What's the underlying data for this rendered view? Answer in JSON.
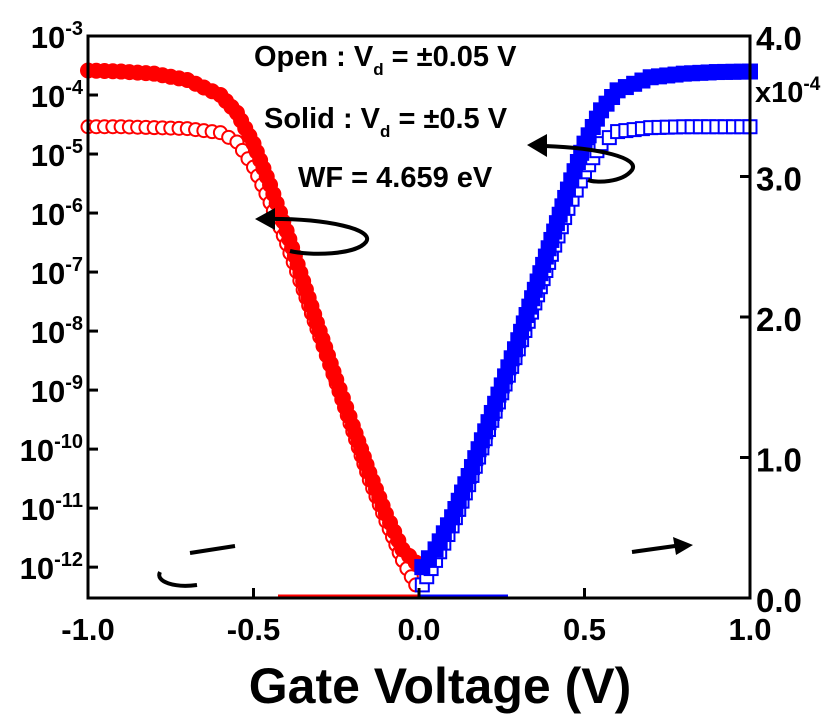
{
  "chart_data": {
    "type": "scatter",
    "xlabel": "Gate Voltage (V)",
    "x_ticks": [
      "-1.0",
      "-0.5",
      "0.0",
      "0.5",
      "1.0"
    ],
    "xlim": [
      -1.0,
      1.0
    ],
    "left_axis": {
      "scale": "log",
      "ylim": [
        3e-13,
        0.001
      ],
      "tick_exponents": [
        "-3",
        "-4",
        "-5",
        "-6",
        "-7",
        "-8",
        "-9",
        "-10",
        "-11",
        "-12"
      ]
    },
    "right_axis": {
      "scale": "linear",
      "ylim": [
        0,
        0.0004
      ],
      "ticks": [
        "0.0",
        "1.0",
        "2.0",
        "3.0",
        "4.0"
      ],
      "multiplier_label": "x10",
      "multiplier_exponent": "-4"
    },
    "annotations": {
      "open_prefix": "Open : V",
      "open_sub": "d",
      "open_suffix": " = ±0.05 V",
      "solid_prefix": "Solid : V",
      "solid_sub": "d",
      "solid_suffix": " = ±0.5 V",
      "wf": "WF = 4.659 eV"
    },
    "series": [
      {
        "name": "Open",
        "marker": "circle",
        "fill": "open",
        "color": "#ff0000",
        "segment": "negative",
        "x": [
          -1.0,
          -0.9,
          -0.8,
          -0.7,
          -0.6,
          -0.55,
          -0.5,
          -0.45,
          -0.4,
          -0.35,
          -0.3,
          -0.25,
          -0.2,
          -0.15,
          -0.1,
          -0.05,
          -0.01
        ],
        "y": [
          2.9e-05,
          2.9e-05,
          2.8e-05,
          2.7e-05,
          2.3e-05,
          1.6e-05,
          6e-06,
          1.5e-06,
          3e-07,
          5e-08,
          8e-09,
          1.3e-09,
          2e-10,
          3e-11,
          6e-12,
          1.3e-12,
          5e-13
        ]
      },
      {
        "name": "Solid",
        "marker": "circle",
        "fill": "solid",
        "color": "#ff0000",
        "segment": "negative",
        "x": [
          -1.0,
          -0.9,
          -0.8,
          -0.7,
          -0.6,
          -0.55,
          -0.5,
          -0.45,
          -0.4,
          -0.35,
          -0.3,
          -0.25,
          -0.2,
          -0.15,
          -0.1,
          -0.05,
          -0.01
        ],
        "y": [
          0.00026,
          0.00025,
          0.00023,
          0.00018,
          0.0001,
          5e-05,
          1.5e-05,
          3e-06,
          5e-07,
          7e-08,
          1e-08,
          1.5e-09,
          2.5e-10,
          4e-11,
          8e-12,
          2e-12,
          1.2e-12
        ]
      },
      {
        "name": "Open",
        "marker": "square",
        "fill": "open",
        "color": "#0000ff",
        "segment": "positive",
        "x": [
          0.01,
          0.05,
          0.1,
          0.15,
          0.2,
          0.25,
          0.3,
          0.35,
          0.4,
          0.45,
          0.5,
          0.55,
          0.6,
          0.7,
          0.8,
          0.9,
          1.0
        ],
        "y": [
          5e-13,
          1.3e-12,
          5e-12,
          2.5e-11,
          1.5e-10,
          9e-10,
          5e-09,
          3e-08,
          2e-07,
          1.2e-06,
          5e-06,
          1.5e-05,
          2.4e-05,
          2.8e-05,
          2.9e-05,
          2.9e-05,
          2.9e-05
        ]
      },
      {
        "name": "Solid",
        "marker": "square",
        "fill": "solid",
        "color": "#0000ff",
        "segment": "positive",
        "x": [
          0.01,
          0.05,
          0.1,
          0.15,
          0.2,
          0.25,
          0.3,
          0.35,
          0.4,
          0.45,
          0.5,
          0.55,
          0.6,
          0.7,
          0.8,
          0.9,
          1.0
        ],
        "y": [
          1e-12,
          2e-12,
          7e-12,
          3.5e-11,
          2e-10,
          1.2e-09,
          7e-09,
          5e-08,
          3.5e-07,
          2.5e-06,
          1.5e-05,
          5.5e-05,
          0.00012,
          0.0002,
          0.00023,
          0.000245,
          0.00025
        ]
      }
    ]
  }
}
